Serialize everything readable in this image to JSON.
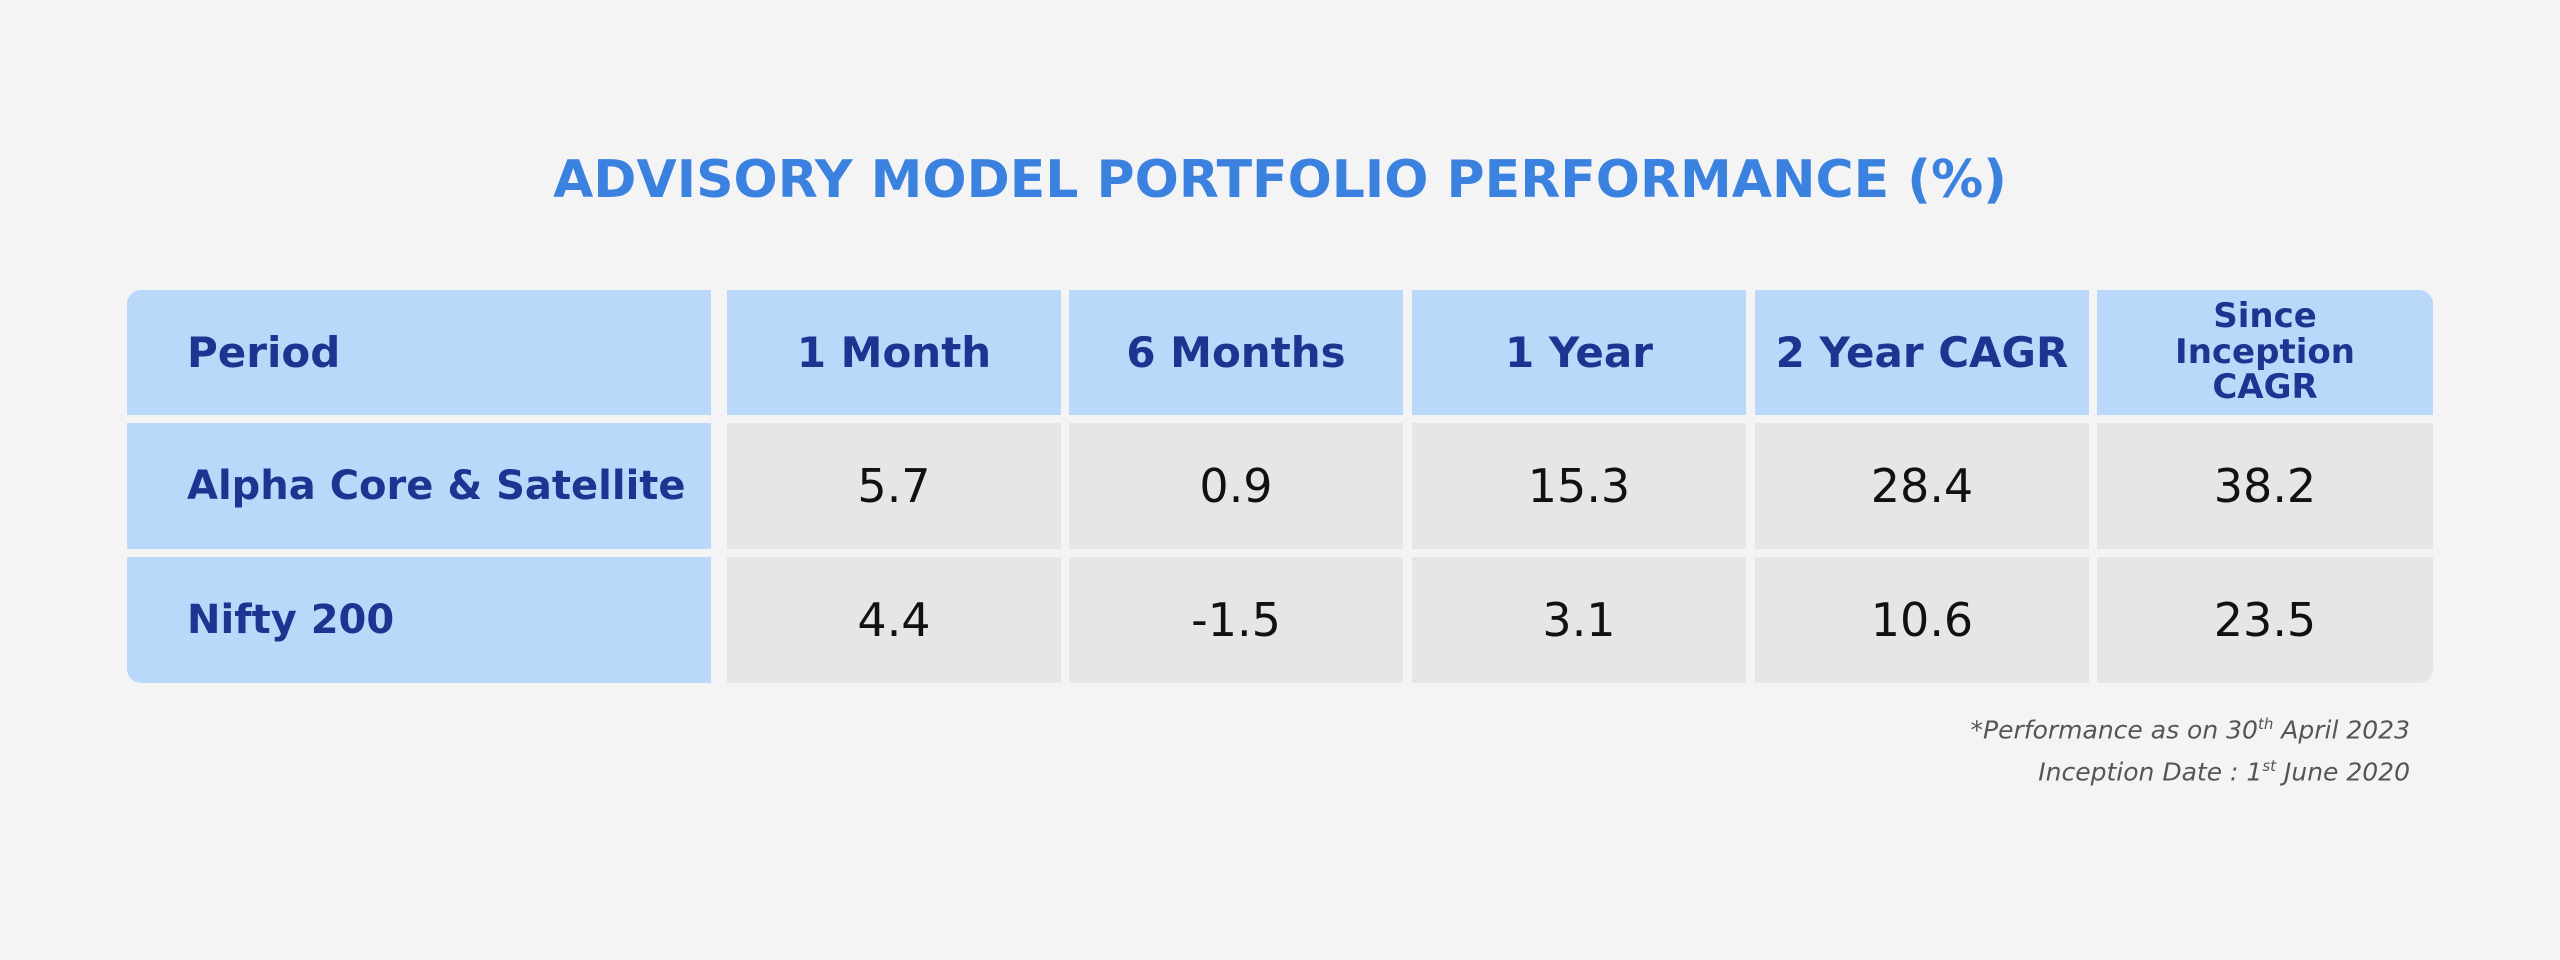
{
  "title": "ADVISORY MODEL PORTFOLIO PERFORMANCE (%)",
  "chart_data": {
    "type": "table",
    "title": "ADVISORY MODEL PORTFOLIO PERFORMANCE (%)",
    "columns": [
      "Period",
      "1 Month",
      "6 Months",
      "1 Year",
      "2 Year CAGR",
      "Since Inception CAGR"
    ],
    "rows": [
      {
        "label": "Alpha Core & Satellite",
        "values": [
          "5.7",
          "0.9",
          "15.3",
          "28.4",
          "38.2"
        ]
      },
      {
        "label": "Nifty 200",
        "values": [
          "4.4",
          "-1.5",
          "3.1",
          "10.6",
          "23.5"
        ]
      }
    ]
  },
  "footnote": {
    "line1_prefix": "*",
    "line1_text": "Performance as on 30",
    "line1_sup": "th",
    "line1_suffix": " April 2023",
    "line2_text": "Inception Date : 1",
    "line2_sup": "st",
    "line2_suffix": " June 2020"
  },
  "colors": {
    "title": "#3b82e0",
    "header_bg": "#bad8fa",
    "header_text": "#1f3490",
    "cell_bg": "#e6e6e6",
    "page_bg": "#f4f4f4"
  }
}
